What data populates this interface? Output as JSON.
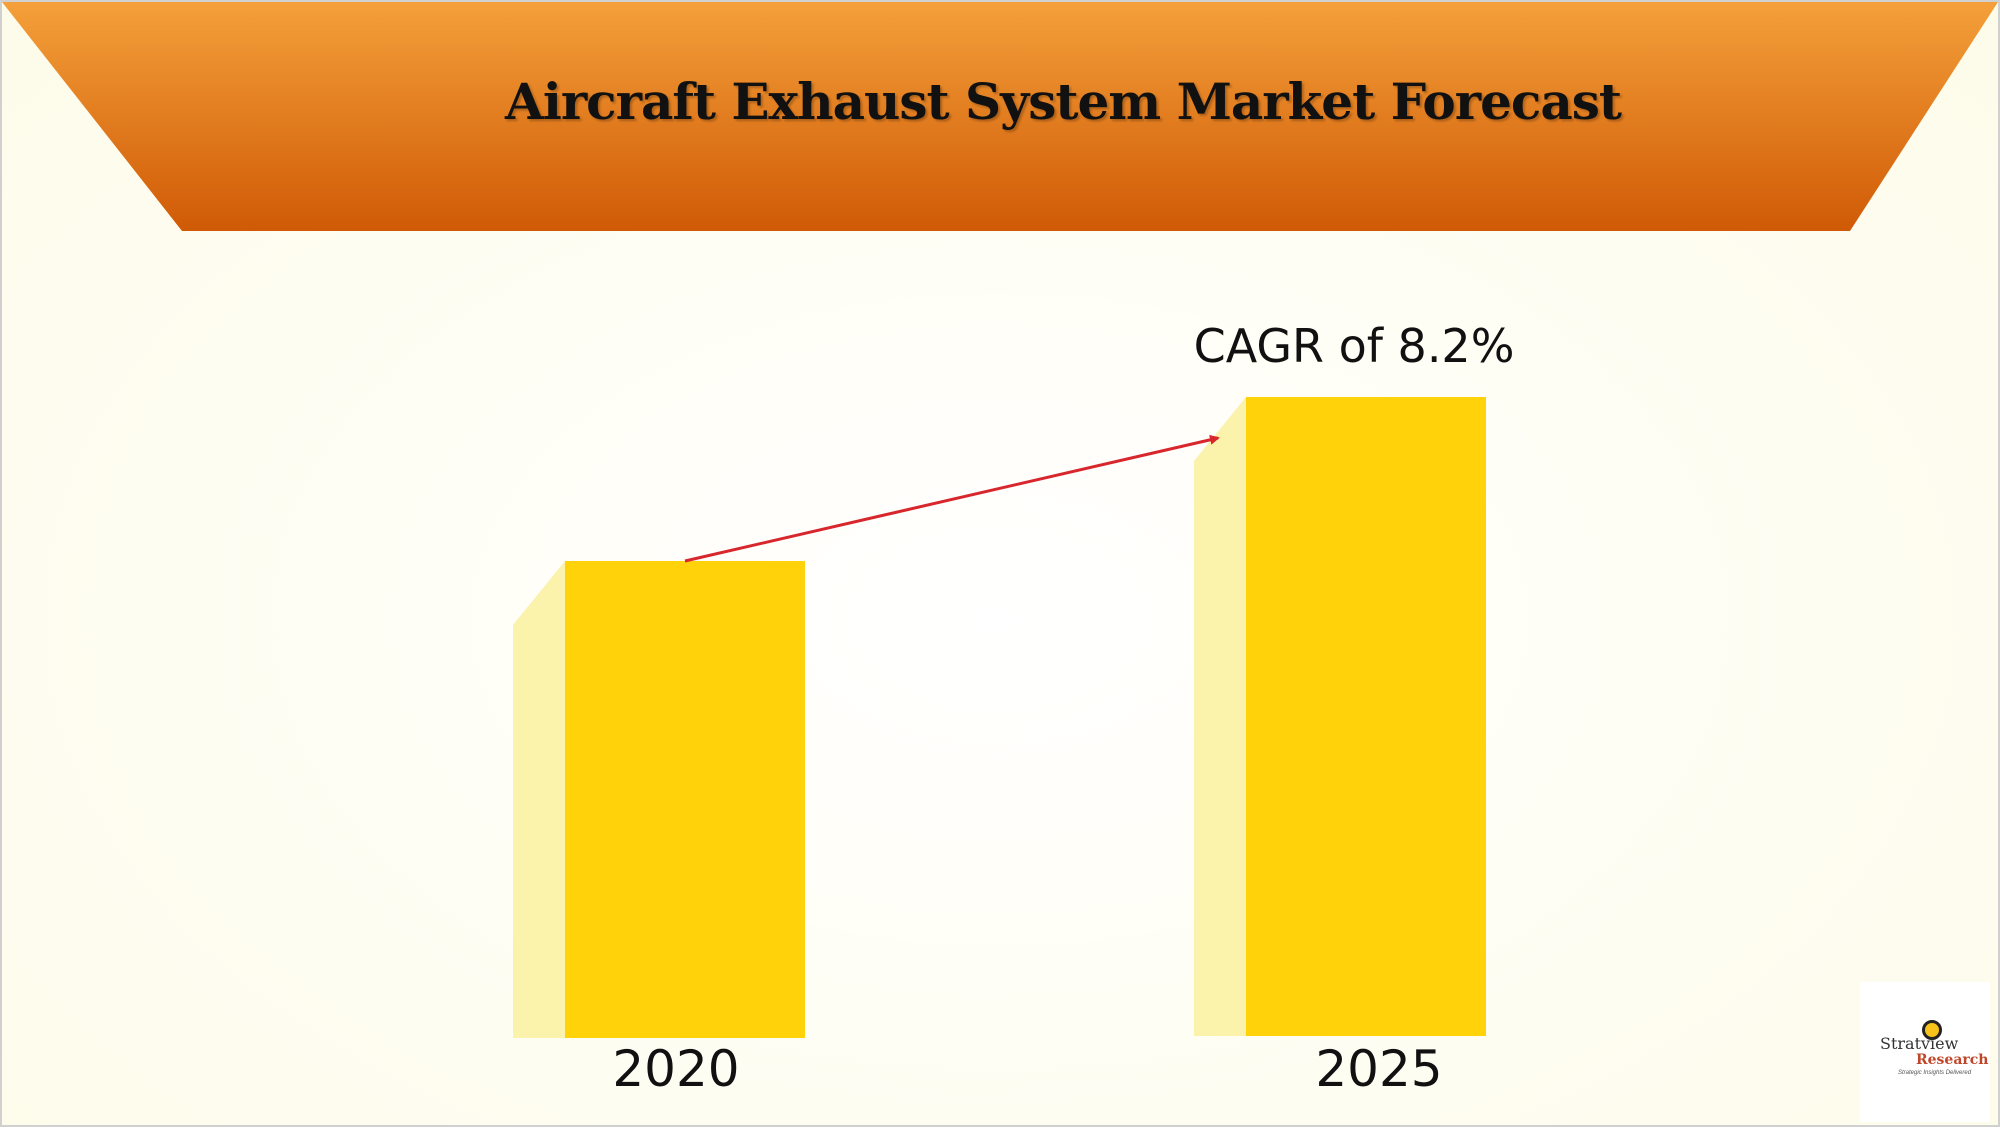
{
  "chart_data": {
    "type": "bar",
    "title": "Aircraft Exhaust System Market Forecast",
    "categories": [
      "2020",
      "2025"
    ],
    "annotation": "CAGR of 8.2%",
    "cagr_percent": 8.2,
    "colors": {
      "bar": "#ffd20a",
      "bar_side": "#fbf2ac",
      "arrow": "#d8262d",
      "banner_top": "#f4a03a",
      "banner_bottom": "#d05a06"
    },
    "grid": false,
    "legend": "none"
  },
  "logo": {
    "name": "Stratview",
    "tm": "TM",
    "sub": "Research",
    "tagline": "Strategic Insights Delivered"
  }
}
